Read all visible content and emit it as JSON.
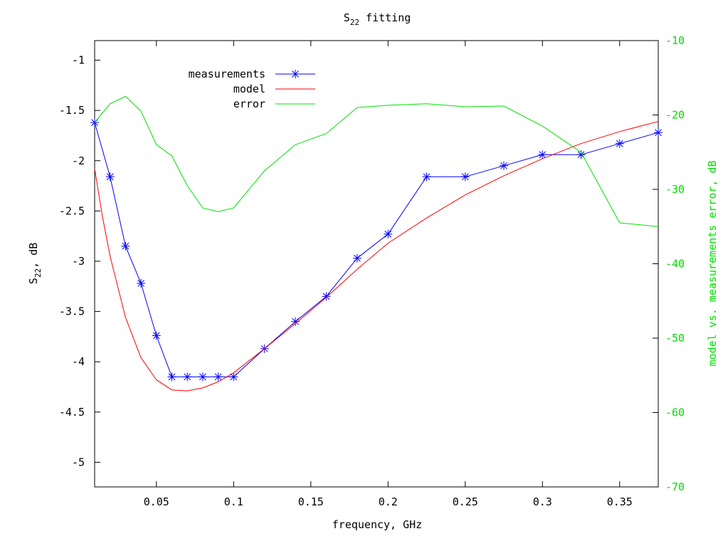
{
  "chart_data": {
    "type": "line",
    "title_main": "S",
    "title_sub": "22",
    "title_rest": " fitting",
    "xlabel": "frequency, GHz",
    "ylabel_main": "S",
    "ylabel_sub": "22",
    "ylabel_rest": ", dB",
    "y2label": "model vs. measurements error, dB",
    "xlim": [
      0.01,
      0.375
    ],
    "ylim": [
      -5.245,
      -0.805
    ],
    "y2lim": [
      -70,
      -10
    ],
    "xticks": [
      0.05,
      0.1,
      0.15,
      0.2,
      0.25,
      0.3,
      0.35
    ],
    "xtick_labels": [
      "0.05",
      "0.1",
      "0.15",
      "0.2",
      "0.25",
      "0.3",
      "0.35"
    ],
    "yticks": [
      -1,
      -1.5,
      -2,
      -2.5,
      -3,
      -3.5,
      -4,
      -4.5,
      -5
    ],
    "ytick_labels": [
      "-1",
      "-1.5",
      "-2",
      "-2.5",
      "-3",
      "-3.5",
      "-4",
      "-4.5",
      "-5"
    ],
    "y2ticks": [
      -10,
      -20,
      -30,
      -40,
      -50,
      -60,
      -70
    ],
    "y2tick_labels": [
      "-10",
      "-20",
      "-30",
      "-40",
      "-50",
      "-60",
      "-70"
    ],
    "legend_position": "top-left",
    "series": [
      {
        "name": "measurements",
        "axis": "y",
        "color": "#0000ff",
        "marker": "asterisk",
        "x": [
          0.01,
          0.02,
          0.03,
          0.04,
          0.05,
          0.06,
          0.07,
          0.08,
          0.09,
          0.1,
          0.12,
          0.14,
          0.16,
          0.18,
          0.2,
          0.225,
          0.25,
          0.275,
          0.3,
          0.325,
          0.35,
          0.375
        ],
        "y": [
          -1.62,
          -2.16,
          -2.85,
          -3.22,
          -3.74,
          -4.15,
          -4.15,
          -4.15,
          -4.15,
          -4.15,
          -3.87,
          -3.6,
          -3.35,
          -2.97,
          -2.73,
          -2.16,
          -2.16,
          -2.05,
          -1.94,
          -1.94,
          -1.83,
          -1.72
        ]
      },
      {
        "name": "model",
        "axis": "y",
        "color": "#ff0000",
        "x": [
          0.01,
          0.015,
          0.02,
          0.03,
          0.04,
          0.05,
          0.06,
          0.07,
          0.08,
          0.09,
          0.1,
          0.12,
          0.14,
          0.16,
          0.18,
          0.2,
          0.225,
          0.25,
          0.275,
          0.3,
          0.325,
          0.35,
          0.375
        ],
        "y": [
          -2.08,
          -2.55,
          -2.95,
          -3.56,
          -3.96,
          -4.18,
          -4.28,
          -4.29,
          -4.26,
          -4.2,
          -4.11,
          -3.87,
          -3.62,
          -3.36,
          -3.08,
          -2.82,
          -2.57,
          -2.34,
          -2.15,
          -1.98,
          -1.83,
          -1.71,
          -1.61
        ]
      },
      {
        "name": "error",
        "axis": "y2",
        "color": "#00e000",
        "x": [
          0.01,
          0.02,
          0.03,
          0.04,
          0.05,
          0.06,
          0.07,
          0.08,
          0.09,
          0.1,
          0.12,
          0.14,
          0.16,
          0.18,
          0.2,
          0.225,
          0.25,
          0.275,
          0.3,
          0.325,
          0.35,
          0.375
        ],
        "y": [
          -21,
          -18.5,
          -17.5,
          -19.5,
          -24,
          -25.5,
          -29.5,
          -32.5,
          -33,
          -32.5,
          -27.5,
          -24,
          -22.5,
          -19,
          -18.7,
          -18.5,
          -18.9,
          -18.8,
          -21.5,
          -25,
          -34.5,
          -35
        ]
      }
    ]
  }
}
